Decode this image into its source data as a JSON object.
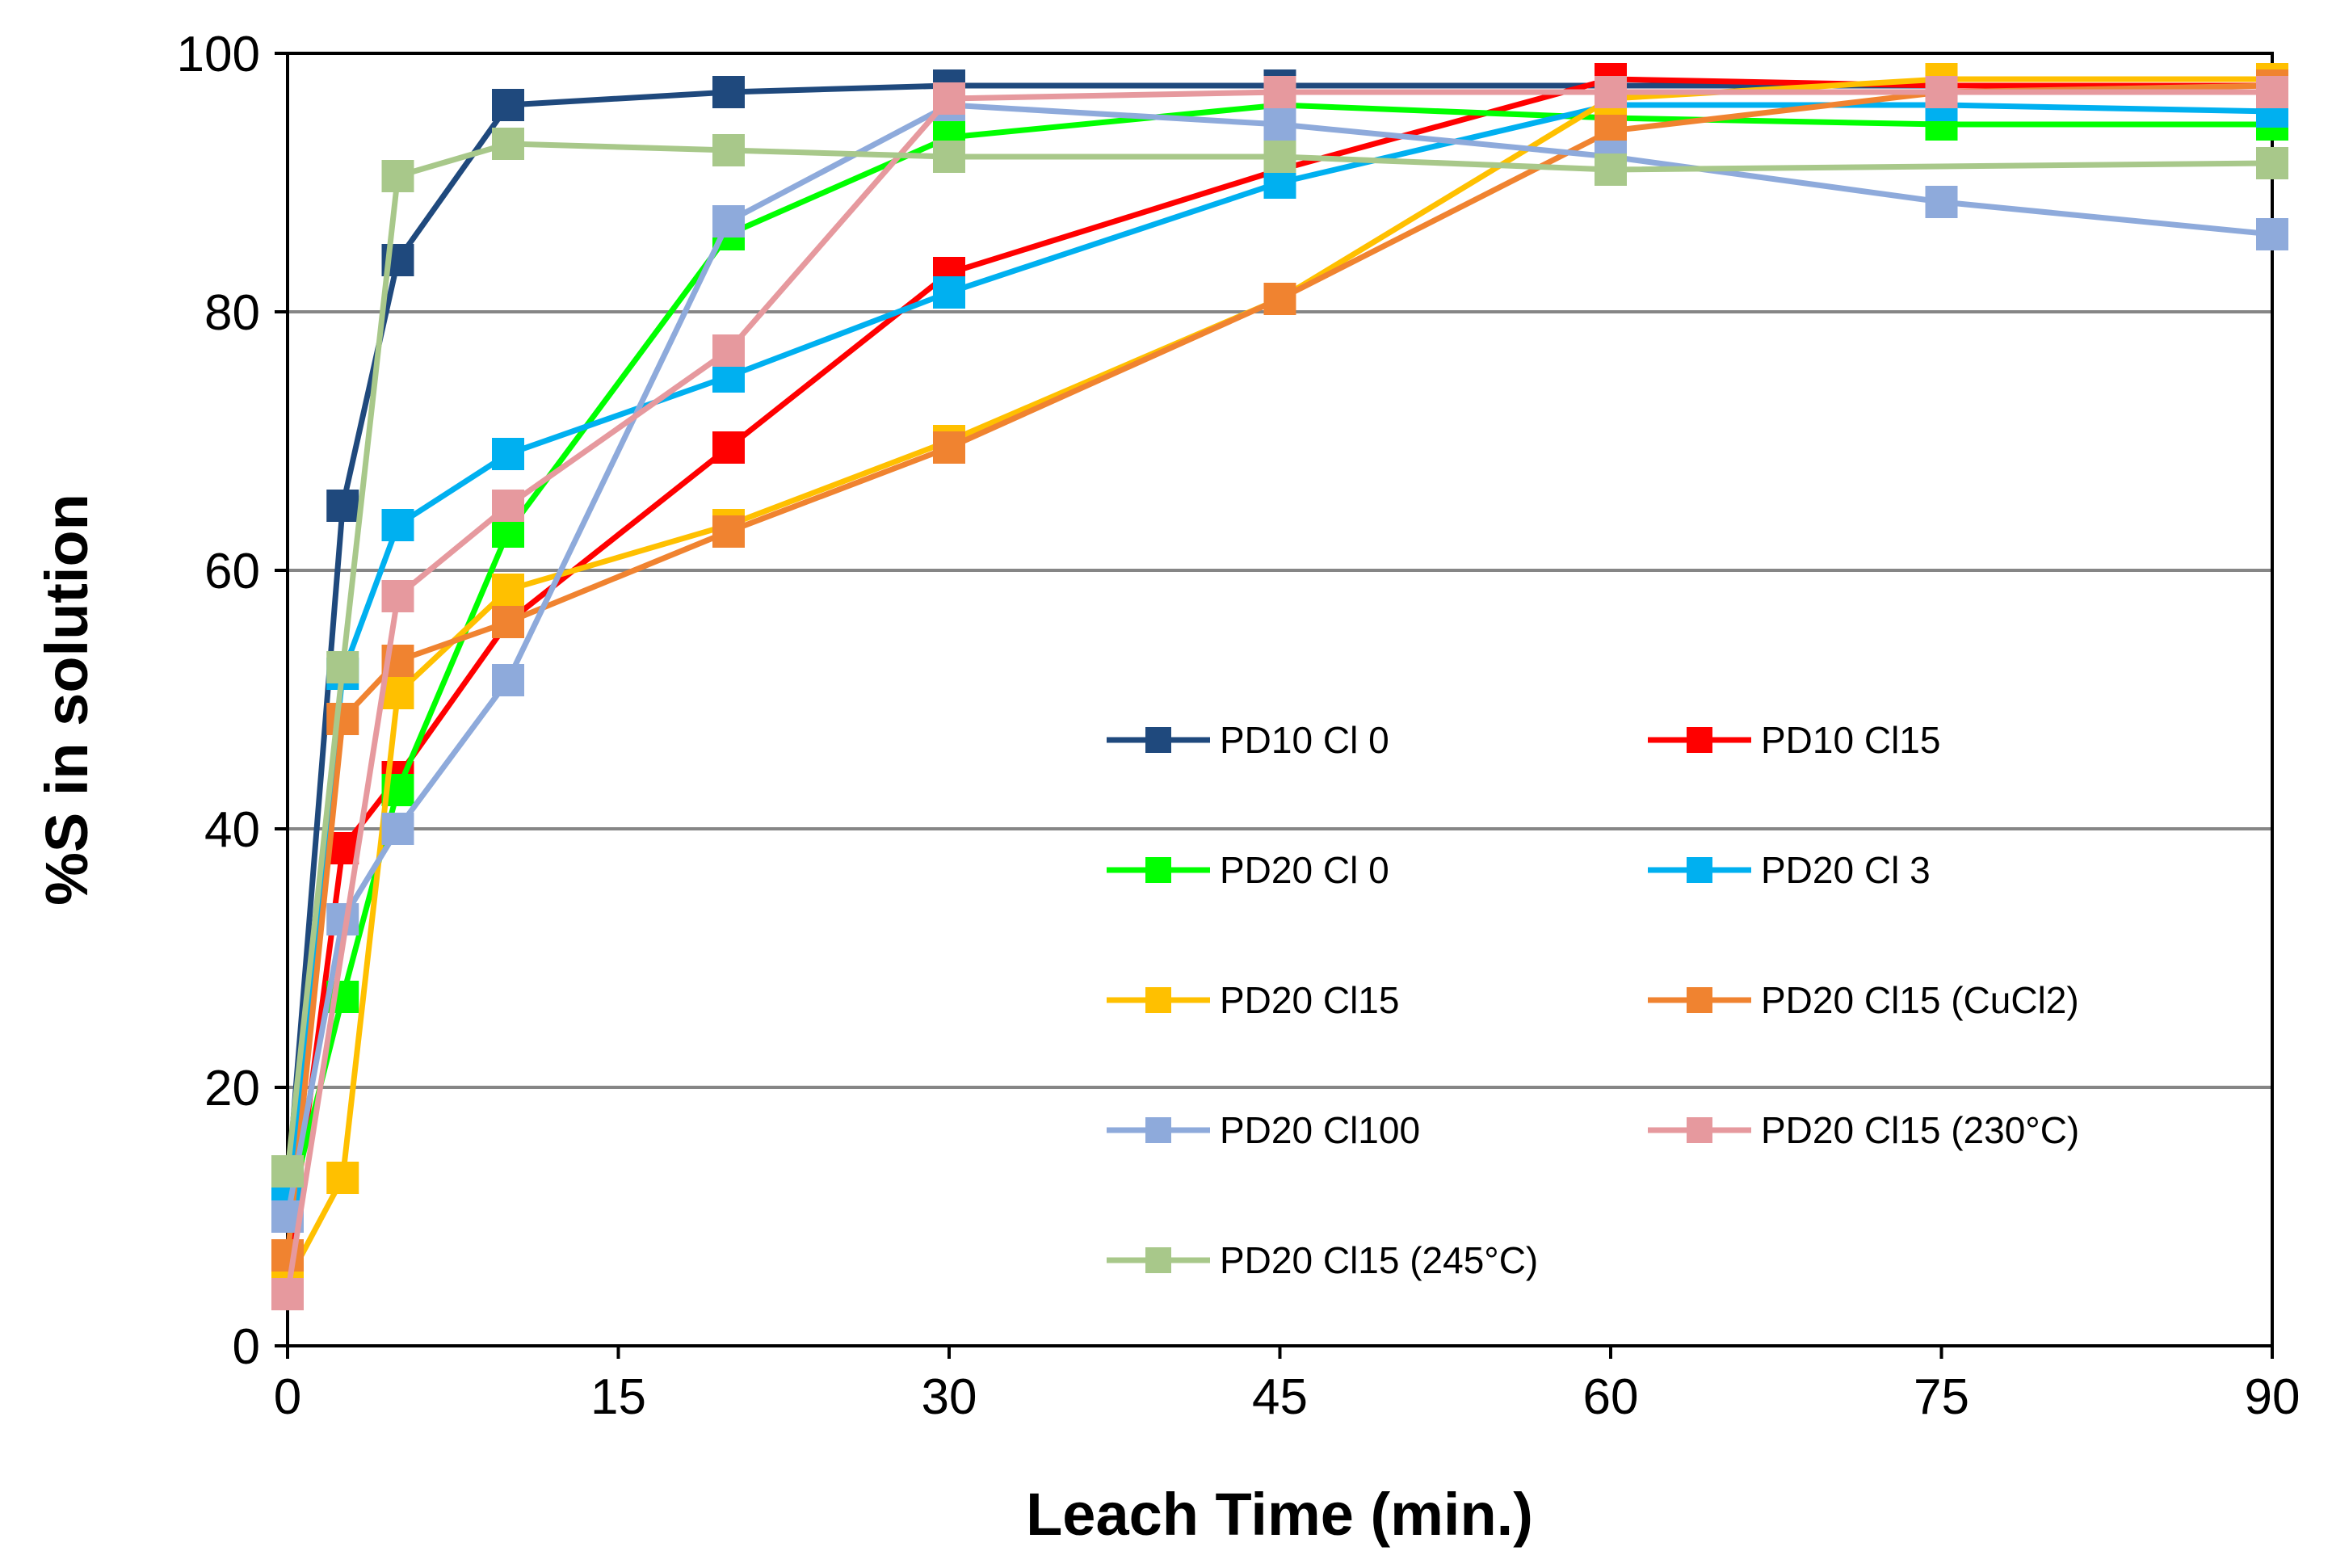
{
  "chart_data": {
    "type": "line",
    "title": "",
    "xlabel": "Leach Time (min.)",
    "ylabel": "%S in solution",
    "xlim": [
      0,
      90
    ],
    "ylim": [
      0,
      100
    ],
    "xticks": [
      0,
      15,
      30,
      45,
      60,
      75,
      90
    ],
    "yticks": [
      0,
      20,
      40,
      60,
      80,
      100
    ],
    "xtick_labels": [
      "0",
      "15",
      "30",
      "45",
      "60",
      "75",
      "90"
    ],
    "ytick_labels": [
      "0",
      "20",
      "40",
      "60",
      "80",
      "100"
    ],
    "grid": "horizontal",
    "legend_position": "center-right",
    "marker": "square",
    "series": [
      {
        "name": "PD10 Cl 0",
        "color": "#1F497D",
        "x": [
          0,
          2.5,
          5,
          10,
          20,
          30,
          45,
          60,
          90
        ],
        "y": [
          12,
          65,
          84,
          96,
          97,
          97.5,
          97.5,
          97.5,
          97.5
        ]
      },
      {
        "name": "PD10 Cl15",
        "color": "#FF0000",
        "x": [
          0,
          2.5,
          5,
          10,
          20,
          30,
          45,
          60,
          75,
          90
        ],
        "y": [
          6,
          38.5,
          44,
          56,
          69.5,
          83,
          91,
          98,
          97.5,
          97.5
        ]
      },
      {
        "name": "PD20 Cl 0",
        "color": "#00FF00",
        "x": [
          0,
          2.5,
          5,
          10,
          20,
          30,
          45,
          60,
          75,
          90
        ],
        "y": [
          10,
          27,
          43,
          63,
          86,
          93.5,
          96,
          95,
          94.5,
          94.5
        ]
      },
      {
        "name": "PD20 Cl 3",
        "color": "#00B0F0",
        "x": [
          0,
          2.5,
          5,
          10,
          20,
          30,
          45,
          60,
          75,
          90
        ],
        "y": [
          11,
          52,
          63.5,
          69,
          75,
          81.5,
          90,
          96,
          96,
          95.5
        ]
      },
      {
        "name": "PD20 Cl15",
        "color": "#FFC000",
        "x": [
          0,
          2.5,
          5,
          10,
          20,
          30,
          45,
          60,
          75,
          90
        ],
        "y": [
          5,
          13,
          50.5,
          58.5,
          63.5,
          70,
          81,
          96.5,
          98,
          98
        ]
      },
      {
        "name": "PD20 Cl15 (CuCl2)",
        "color": "#F08330",
        "x": [
          0,
          2.5,
          5,
          10,
          20,
          30,
          45,
          60,
          75,
          90
        ],
        "y": [
          7,
          48.5,
          53,
          56,
          63,
          69.5,
          81,
          94,
          97,
          97.5
        ]
      },
      {
        "name": "PD20 Cl100",
        "color": "#8EAADB",
        "x": [
          0,
          2.5,
          5,
          10,
          20,
          30,
          45,
          60,
          75,
          90
        ],
        "y": [
          10,
          33,
          40,
          51.5,
          87,
          96,
          94.5,
          92,
          88.5,
          86
        ]
      },
      {
        "name": "PD20 Cl15 (230°C)",
        "color": "#E6999E",
        "x": [
          0,
          5,
          10,
          20,
          30,
          45,
          60,
          75,
          90
        ],
        "y": [
          4,
          58,
          65,
          77,
          96.5,
          97,
          97,
          97,
          97
        ]
      },
      {
        "name": "PD20 Cl15 (245°C)",
        "color": "#A8C88A",
        "x": [
          0,
          2.5,
          5,
          10,
          20,
          30,
          45,
          60,
          90
        ],
        "y": [
          13.5,
          52.5,
          90.5,
          93,
          92.5,
          92,
          92,
          91,
          91.5
        ]
      }
    ]
  }
}
